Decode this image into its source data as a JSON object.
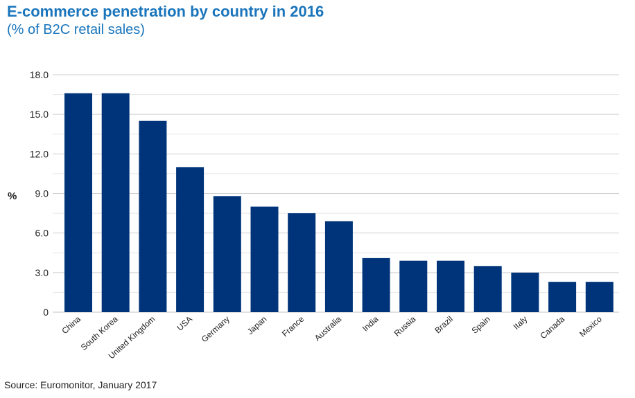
{
  "header": {
    "title": "E-commerce penetration by country in 2016",
    "subtitle": "(% of B2C retail sales)"
  },
  "footer": {
    "source": "Source: Euromonitor, January 2017"
  },
  "colors": {
    "bar": "#00347a",
    "title": "#1a75bc",
    "grid": "#d4d4d4"
  },
  "chart_data": {
    "type": "bar",
    "title": "E-commerce penetration by country in 2016",
    "subtitle": "(% of B2C retail sales)",
    "xlabel": "",
    "ylabel": "%",
    "ylim": [
      0,
      18
    ],
    "yticks": [
      0,
      3.0,
      6.0,
      9.0,
      12.0,
      15.0,
      18.0
    ],
    "ytick_labels": [
      "0",
      "3.0",
      "6.0",
      "9.0",
      "12.0",
      "15.0",
      "18.0"
    ],
    "grid": true,
    "categories": [
      "China",
      "South Korea",
      "United Kingdom",
      "USA",
      "Germany",
      "Japan",
      "France",
      "Australia",
      "India",
      "Russia",
      "Brazil",
      "Spain",
      "Italy",
      "Canada",
      "Mexico"
    ],
    "values": [
      16.6,
      16.6,
      14.5,
      11.0,
      8.8,
      8.0,
      7.5,
      6.9,
      4.1,
      3.9,
      3.9,
      3.5,
      3.0,
      2.3,
      2.3
    ]
  }
}
